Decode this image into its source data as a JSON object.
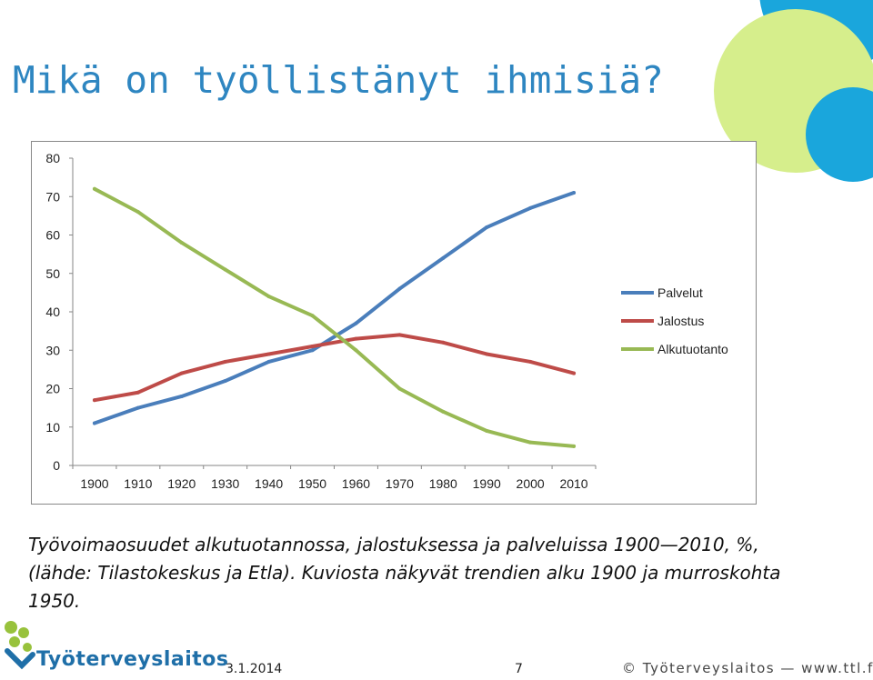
{
  "slide": {
    "title": "Mikä on työllistänyt ihmisiä?",
    "caption": "Työvoimaosuudet alkutuotannossa, jalostuksessa ja palveluissa 1900—2010, %, (lähde: Tilastokeskus ja Etla). Kuviosta näkyvät trendien alku 1900 ja murroskohta 1950."
  },
  "footer": {
    "brand": "Työterveyslaitos",
    "date": "3.1.2014",
    "page": "7",
    "copyright": "© Työterveyslaitos — www.ttl.fi"
  },
  "colors": {
    "title": "#2e86c1",
    "palvelut": "#4a7ebb",
    "jalostus": "#be4b48",
    "alkutuotanto": "#98b954",
    "deco_cyan": "#1aa6dc",
    "deco_lime": "#d6ee8c"
  },
  "chart_data": {
    "type": "line",
    "x": [
      1900,
      1910,
      1920,
      1930,
      1940,
      1950,
      1960,
      1970,
      1980,
      1990,
      2000,
      2010
    ],
    "yticks": [
      0,
      10,
      20,
      30,
      40,
      50,
      60,
      70,
      80
    ],
    "ylim": [
      0,
      80
    ],
    "grid": false,
    "legend_position": "right",
    "series": [
      {
        "name": "Palvelut",
        "color": "#4a7ebb",
        "values": [
          11,
          15,
          18,
          22,
          27,
          30,
          37,
          46,
          54,
          62,
          67,
          71
        ]
      },
      {
        "name": "Jalostus",
        "color": "#be4b48",
        "values": [
          17,
          19,
          24,
          27,
          29,
          31,
          33,
          34,
          32,
          29,
          27,
          24
        ]
      },
      {
        "name": "Alkutuotanto",
        "color": "#98b954",
        "values": [
          72,
          66,
          58,
          51,
          44,
          39,
          30,
          20,
          14,
          9,
          6,
          5
        ]
      }
    ]
  }
}
